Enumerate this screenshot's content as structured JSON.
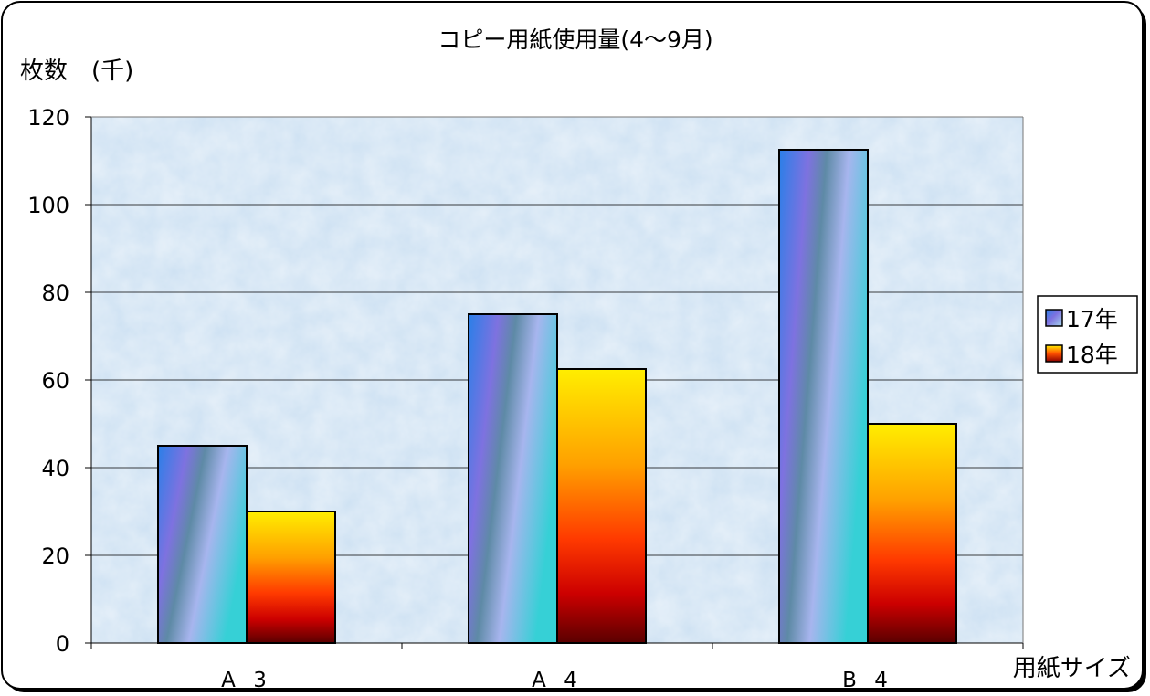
{
  "chart_data": {
    "type": "bar",
    "title": "コピー用紙使用量(4～9月)",
    "ylabel": "枚数　(千)",
    "xlabel": "用紙サイズ",
    "categories": [
      "A3",
      "A4",
      "B4"
    ],
    "category_display": [
      "A 3",
      "A 4",
      "B 4"
    ],
    "series": [
      {
        "name": "17年",
        "values": [
          45,
          75,
          112.5
        ]
      },
      {
        "name": "18年",
        "values": [
          30,
          62.5,
          50
        ]
      }
    ],
    "ylim": [
      0,
      120
    ],
    "yticks": [
      0,
      20,
      40,
      60,
      80,
      100,
      120
    ],
    "grid": true,
    "legend_position": "right",
    "colors": {
      "plot_background": "#cfe2f3",
      "series1_gradient": [
        "#2a7fe8",
        "#7e72e0",
        "#5e8aa6",
        "#a7b5ee",
        "#36d0d6"
      ],
      "series2_gradient": [
        "#ffee00",
        "#ffa000",
        "#ff3a00",
        "#cc0000",
        "#5a0000"
      ],
      "gridline": "#000000",
      "frame": "#000000"
    }
  }
}
